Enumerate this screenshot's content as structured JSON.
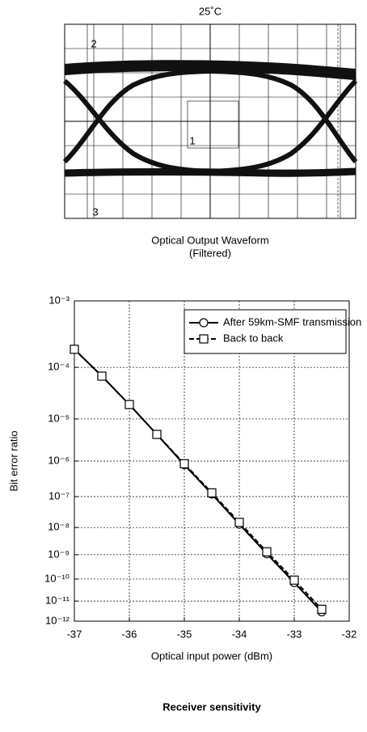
{
  "waveform": {
    "title": "25˚C",
    "markers": [
      "2",
      "1",
      "3"
    ],
    "caption": [
      "Optical Output Waveform",
      "(Filtered)"
    ]
  },
  "chart_data": {
    "type": "line",
    "title": "Receiver sensitivity",
    "xlabel": "Optical input power (dBm)",
    "ylabel": "Bit error ratio",
    "x": [
      -37,
      -36.5,
      -36,
      -35.5,
      -35,
      -34.5,
      -34,
      -33.5,
      -33,
      -32.5
    ],
    "series": [
      {
        "name": "After 59km-SMF transmission",
        "color": "#000000",
        "linestyle": "solid",
        "marker": "circle",
        "values": [
          0.0002,
          7e-05,
          2e-05,
          4.5e-06,
          8e-07,
          1.2e-07,
          1.3e-08,
          1.1e-09,
          7e-11,
          3e-12
        ]
      },
      {
        "name": "Back to back",
        "color": "#000000",
        "linestyle": "dashed",
        "marker": "square",
        "values": [
          0.0002,
          7e-05,
          2e-05,
          4.5e-06,
          8.5e-07,
          1.3e-07,
          1.5e-08,
          1.3e-09,
          9e-11,
          4e-12
        ]
      }
    ],
    "xlim": [
      -37,
      -32
    ],
    "xticks": [
      -37,
      -36,
      -35,
      -34,
      -33,
      -32
    ],
    "ylim": [
      1e-12,
      0.001
    ],
    "yscale": "log-log",
    "yticks": [
      {
        "value": 1e-12,
        "label": "10⁻¹²"
      },
      {
        "value": 1e-11,
        "label": "10⁻¹¹"
      },
      {
        "value": 1e-10,
        "label": "10⁻¹⁰"
      },
      {
        "value": 1e-09,
        "label": "10⁻⁹"
      },
      {
        "value": 1e-08,
        "label": "10⁻⁸"
      },
      {
        "value": 1e-07,
        "label": "10⁻⁷"
      },
      {
        "value": 1e-06,
        "label": "10⁻⁶"
      },
      {
        "value": 1e-05,
        "label": "10⁻⁵"
      },
      {
        "value": 0.0001,
        "label": "10⁻⁴"
      },
      {
        "value": 0.001,
        "label": "10⁻³"
      }
    ],
    "grid": true,
    "legend": "upper right"
  }
}
